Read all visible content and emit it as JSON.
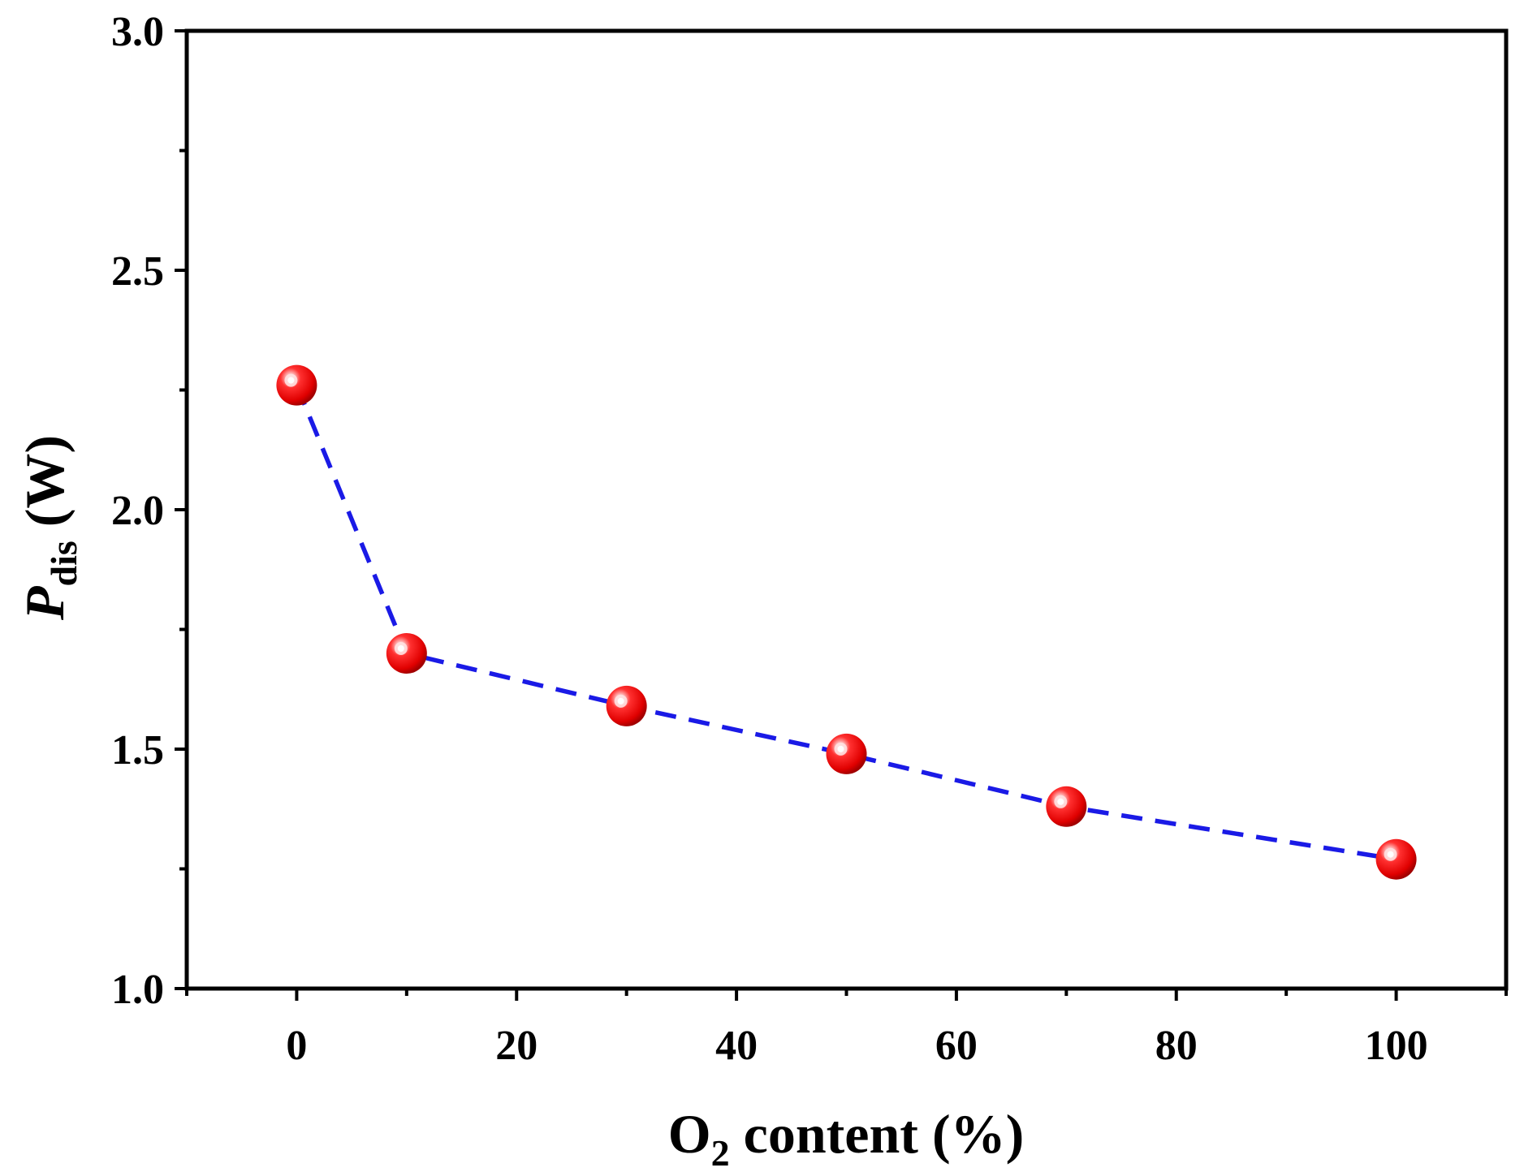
{
  "chart_data": {
    "type": "scatter",
    "x": [
      0,
      10,
      30,
      50,
      70,
      100
    ],
    "series": [
      {
        "values": [
          2.26,
          1.7,
          1.59,
          1.49,
          1.38,
          1.27
        ],
        "marker": "sphere",
        "marker_color": "#ee1111",
        "line_style": "dashed",
        "line_color": "#1a1ae6"
      }
    ],
    "xlim": [
      -10,
      110
    ],
    "ylim": [
      1.0,
      3.0
    ],
    "x_ticks": [
      0,
      20,
      40,
      60,
      80,
      100
    ],
    "x_tick_labels": [
      "0",
      "20",
      "40",
      "60",
      "80",
      "100"
    ],
    "x_minor_ticks": [
      -10,
      10,
      30,
      50,
      70,
      90,
      110
    ],
    "y_ticks": [
      1.0,
      1.5,
      2.0,
      2.5,
      3.0
    ],
    "y_tick_labels": [
      "1.0",
      "1.5",
      "2.0",
      "2.5",
      "3.0"
    ],
    "y_minor_ticks": [
      1.25,
      1.75,
      2.25,
      2.75
    ],
    "xlabel": {
      "main": "O",
      "sub": "2",
      "rest": " content (%)"
    },
    "ylabel": {
      "main": "P",
      "sub": "dis",
      "rest": " (W)"
    },
    "grid": false,
    "legend": "none"
  }
}
